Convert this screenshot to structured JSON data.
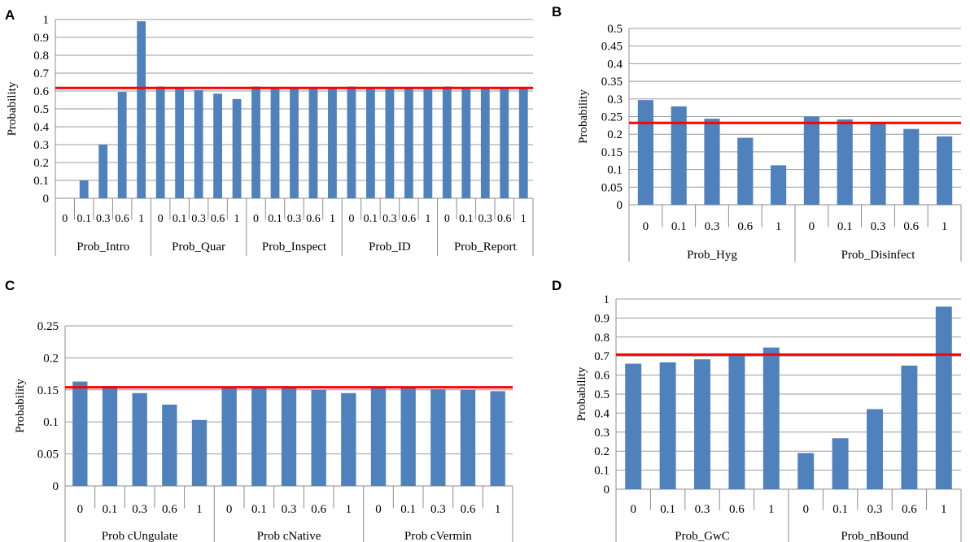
{
  "chart_data": [
    {
      "panel_label": "A",
      "type": "bar",
      "ylabel": "Probability",
      "ylim": [
        0,
        1
      ],
      "yticks": [
        "0",
        "0.1",
        "0.2",
        "0.3",
        "0.4",
        "0.5",
        "0.6",
        "0.7",
        "0.8",
        "0.9",
        "1"
      ],
      "reference_line": 0.617,
      "bar_color": "#4f81bd",
      "line_color": "#ff0000",
      "groups": [
        {
          "name": "Prob_Intro",
          "categories": [
            "0",
            "0.1",
            "0.3",
            "0.6",
            "1"
          ],
          "values": [
            0,
            0.1,
            0.3,
            0.595,
            0.99
          ]
        },
        {
          "name": "Prob_Quar",
          "categories": [
            "0",
            "0.1",
            "0.3",
            "0.6",
            "1"
          ],
          "values": [
            0.625,
            0.615,
            0.605,
            0.585,
            0.555
          ]
        },
        {
          "name": "Prob_Inspect",
          "categories": [
            "0",
            "0.1",
            "0.3",
            "0.6",
            "1"
          ],
          "values": [
            0.625,
            0.62,
            0.617,
            0.617,
            0.617
          ]
        },
        {
          "name": "Prob_ID",
          "categories": [
            "0",
            "0.1",
            "0.3",
            "0.6",
            "1"
          ],
          "values": [
            0.625,
            0.62,
            0.617,
            0.617,
            0.617
          ]
        },
        {
          "name": "Prob_Report",
          "categories": [
            "0",
            "0.1",
            "0.3",
            "0.6",
            "1"
          ],
          "values": [
            0.625,
            0.62,
            0.617,
            0.617,
            0.617
          ]
        }
      ]
    },
    {
      "panel_label": "B",
      "type": "bar",
      "ylabel": "Probability",
      "ylim": [
        0,
        0.5
      ],
      "yticks": [
        "0",
        "0.05",
        "0.1",
        "0.15",
        "0.2",
        "0.25",
        "0.3",
        "0.35",
        "0.4",
        "0.45",
        "0.5"
      ],
      "reference_line": 0.232,
      "bar_color": "#4f81bd",
      "line_color": "#ff0000",
      "groups": [
        {
          "name": "Prob_Hyg",
          "categories": [
            "0",
            "0.1",
            "0.3",
            "0.6",
            "1"
          ],
          "values": [
            0.297,
            0.279,
            0.244,
            0.19,
            0.112
          ]
        },
        {
          "name": "Prob_Disinfect",
          "categories": [
            "0",
            "0.1",
            "0.3",
            "0.6",
            "1"
          ],
          "values": [
            0.25,
            0.242,
            0.23,
            0.215,
            0.194
          ]
        }
      ]
    },
    {
      "panel_label": "C",
      "type": "bar",
      "ylabel": "Probability",
      "ylim": [
        0,
        0.25
      ],
      "yticks": [
        "0",
        "0.05",
        "0.1",
        "0.15",
        "0.2",
        "0.25"
      ],
      "reference_line": 0.154,
      "bar_color": "#4f81bd",
      "line_color": "#ff0000",
      "groups": [
        {
          "name": "Prob cUngulate",
          "categories": [
            "0",
            "0.1",
            "0.3",
            "0.6",
            "1"
          ],
          "values": [
            0.163,
            0.156,
            0.145,
            0.127,
            0.103
          ]
        },
        {
          "name": "Prob cNative",
          "categories": [
            "0",
            "0.1",
            "0.3",
            "0.6",
            "1"
          ],
          "values": [
            0.154,
            0.154,
            0.153,
            0.15,
            0.145
          ]
        },
        {
          "name": "Prob cVermin",
          "categories": [
            "0",
            "0.1",
            "0.3",
            "0.6",
            "1"
          ],
          "values": [
            0.154,
            0.153,
            0.151,
            0.15,
            0.148
          ]
        }
      ]
    },
    {
      "panel_label": "D",
      "type": "bar",
      "ylabel": "Probability",
      "ylim": [
        0,
        1
      ],
      "yticks": [
        "0",
        "0.1",
        "0.2",
        "0.3",
        "0.4",
        "0.5",
        "0.6",
        "0.7",
        "0.8",
        "0.9",
        "1"
      ],
      "reference_line": 0.708,
      "bar_color": "#4f81bd",
      "line_color": "#ff0000",
      "groups": [
        {
          "name": "Prob_GwC",
          "categories": [
            "0",
            "0.1",
            "0.3",
            "0.6",
            "1"
          ],
          "values": [
            0.66,
            0.667,
            0.683,
            0.706,
            0.745
          ]
        },
        {
          "name": "Prob_nBound",
          "categories": [
            "0",
            "0.1",
            "0.3",
            "0.6",
            "1"
          ],
          "values": [
            0.19,
            0.268,
            0.421,
            0.65,
            0.96
          ]
        }
      ]
    }
  ]
}
